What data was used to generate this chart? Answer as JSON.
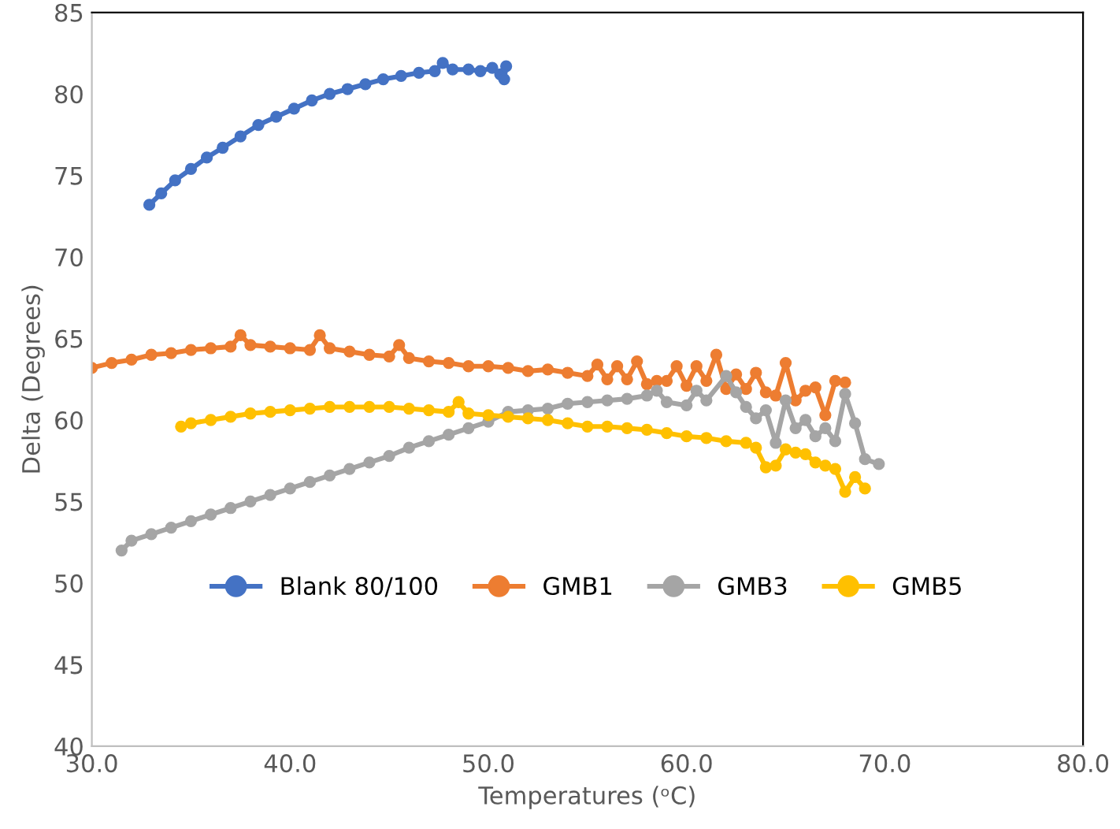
{
  "chart_data": {
    "type": "line",
    "xlabel": "Temperatures (ᵒC)",
    "ylabel": "Delta (Degrees)",
    "xlim": [
      30,
      80
    ],
    "ylim": [
      40,
      85
    ],
    "xticks": [
      {
        "value": 30,
        "label": "30.0"
      },
      {
        "value": 40,
        "label": "40.0"
      },
      {
        "value": 50,
        "label": "50.0"
      },
      {
        "value": 60,
        "label": "60.0"
      },
      {
        "value": 70,
        "label": "70.0"
      },
      {
        "value": 80,
        "label": "80.0"
      }
    ],
    "yticks": [
      40,
      45,
      50,
      55,
      60,
      65,
      70,
      75,
      80,
      85
    ],
    "grid": false,
    "legend": "bottom",
    "marker": "circle",
    "line_style": "solid",
    "series": [
      {
        "name": "Blank 80/100",
        "color": "#4472c4",
        "x": [
          32.9,
          33.5,
          34.2,
          35,
          35.8,
          36.6,
          37.5,
          38.4,
          39.3,
          40.2,
          41.1,
          42,
          42.9,
          43.8,
          44.7,
          45.6,
          46.5,
          47.3,
          47.7,
          48.2,
          49,
          49.6,
          50.2,
          50.6,
          50.8,
          50.9
        ],
        "values": [
          73.2,
          73.9,
          74.7,
          75.4,
          76.1,
          76.7,
          77.4,
          78.1,
          78.6,
          79.1,
          79.6,
          80,
          80.3,
          80.6,
          80.9,
          81.1,
          81.3,
          81.4,
          81.9,
          81.5,
          81.5,
          81.4,
          81.6,
          81.2,
          80.9,
          81.7
        ]
      },
      {
        "name": "GMB1",
        "color": "#ed7d31",
        "x": [
          30,
          31,
          32,
          33,
          34,
          35,
          36,
          37,
          37.5,
          38,
          39,
          40,
          41,
          41.5,
          42,
          43,
          44,
          45,
          45.5,
          46,
          47,
          48,
          49,
          50,
          51,
          52,
          53,
          54,
          55,
          55.5,
          56,
          56.5,
          57,
          57.5,
          58,
          58.5,
          59,
          59.5,
          60,
          60.5,
          61,
          61.5,
          62,
          62.5,
          63,
          63.5,
          64,
          64.5,
          65,
          65.5,
          66,
          66.5,
          67,
          67.5,
          68
        ],
        "values": [
          63.2,
          63.5,
          63.7,
          64,
          64.1,
          64.3,
          64.4,
          64.5,
          65.2,
          64.6,
          64.5,
          64.4,
          64.3,
          65.2,
          64.4,
          64.2,
          64,
          63.9,
          64.6,
          63.8,
          63.6,
          63.5,
          63.3,
          63.3,
          63.2,
          63,
          63.1,
          62.9,
          62.7,
          63.4,
          62.5,
          63.3,
          62.5,
          63.6,
          62.2,
          62.4,
          62.4,
          63.3,
          62.1,
          63.3,
          62.4,
          64,
          61.9,
          62.8,
          61.9,
          62.9,
          61.7,
          61.5,
          63.5,
          61.2,
          61.8,
          62,
          60.3,
          62.4,
          62.3
        ]
      },
      {
        "name": "GMB3",
        "color": "#a5a5a5",
        "x": [
          31.5,
          32,
          33,
          34,
          35,
          36,
          37,
          38,
          39,
          40,
          41,
          42,
          43,
          44,
          45,
          46,
          47,
          48,
          49,
          50,
          51,
          52,
          53,
          54,
          55,
          56,
          57,
          58,
          58.5,
          59,
          60,
          60.5,
          61,
          62,
          62.5,
          63,
          63.5,
          64,
          64.5,
          65,
          65.5,
          66,
          66.5,
          67,
          67.5,
          68,
          68.5,
          69,
          69.7
        ],
        "values": [
          52,
          52.6,
          53,
          53.4,
          53.8,
          54.2,
          54.6,
          55,
          55.4,
          55.8,
          56.2,
          56.6,
          57,
          57.4,
          57.8,
          58.3,
          58.7,
          59.1,
          59.5,
          59.9,
          60.5,
          60.6,
          60.7,
          61,
          61.1,
          61.2,
          61.3,
          61.5,
          61.8,
          61.1,
          60.9,
          61.8,
          61.2,
          62.7,
          61.7,
          60.8,
          60.1,
          60.6,
          58.6,
          61.2,
          59.5,
          60,
          59,
          59.5,
          58.7,
          61.6,
          59.8,
          57.6,
          57.3
        ]
      },
      {
        "name": "GMB5",
        "color": "#ffc000",
        "x": [
          34.5,
          35,
          36,
          37,
          38,
          39,
          40,
          41,
          42,
          43,
          44,
          45,
          46,
          47,
          48,
          48.5,
          49,
          50,
          51,
          52,
          53,
          54,
          55,
          56,
          57,
          58,
          59,
          60,
          61,
          62,
          63,
          63.5,
          64,
          64.5,
          65,
          65.5,
          66,
          66.5,
          67,
          67.5,
          68,
          68.5,
          69
        ],
        "values": [
          59.6,
          59.8,
          60,
          60.2,
          60.4,
          60.5,
          60.6,
          60.7,
          60.8,
          60.8,
          60.8,
          60.8,
          60.7,
          60.6,
          60.5,
          61.1,
          60.4,
          60.3,
          60.2,
          60.1,
          60,
          59.8,
          59.6,
          59.6,
          59.5,
          59.4,
          59.2,
          59,
          58.9,
          58.7,
          58.6,
          58.3,
          57.1,
          57.2,
          58.2,
          58,
          57.9,
          57.4,
          57.2,
          57,
          55.6,
          56.5,
          55.8
        ]
      }
    ]
  }
}
